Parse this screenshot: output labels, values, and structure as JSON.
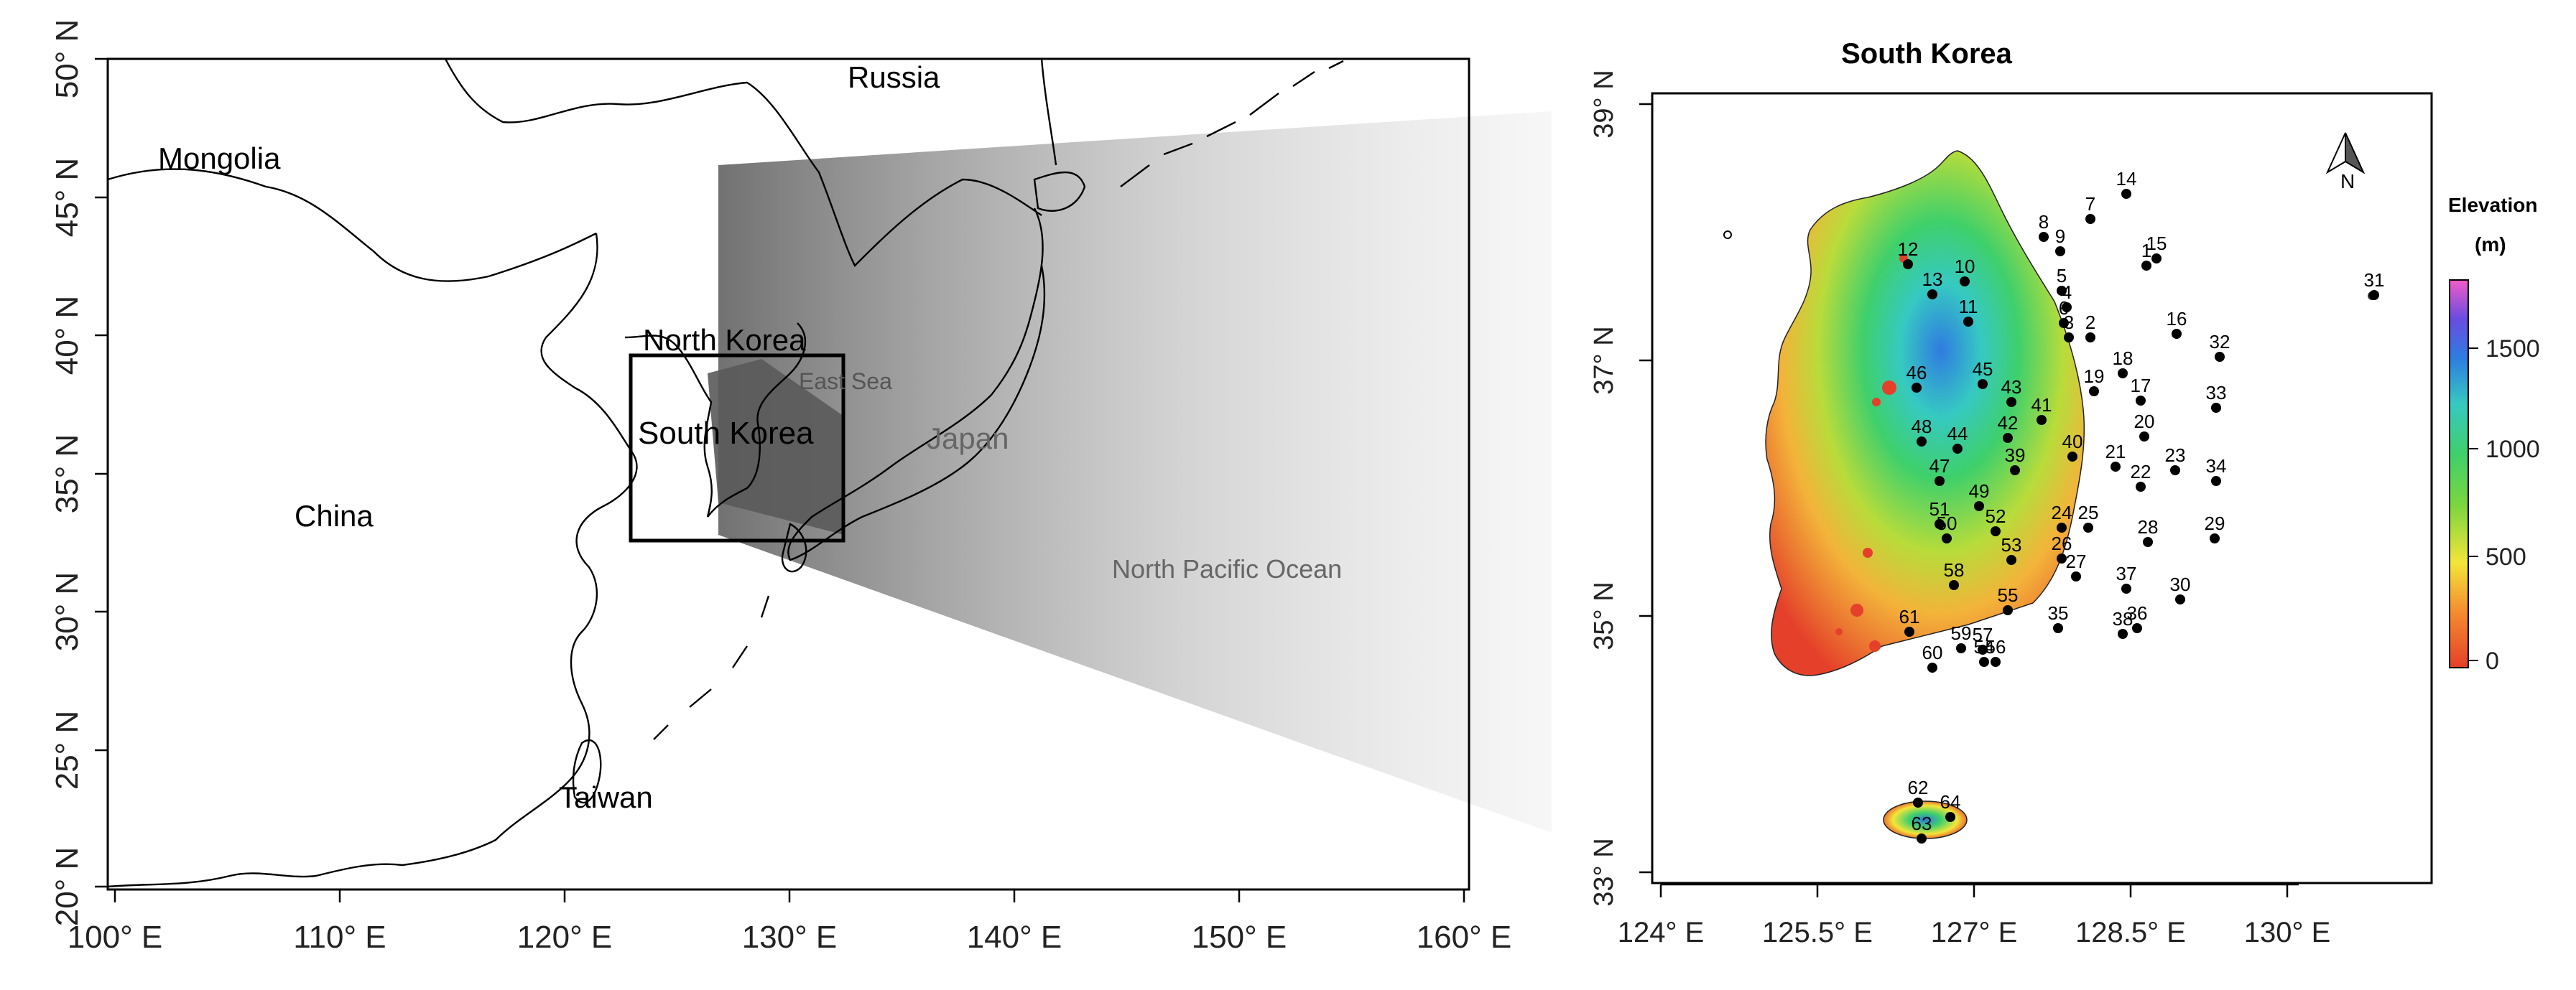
{
  "left_map": {
    "x_ticks": [
      "100° E",
      "110° E",
      "120° E",
      "130° E",
      "140° E",
      "150° E",
      "160° E"
    ],
    "y_ticks": [
      "20° N",
      "25° N",
      "30° N",
      "35° N",
      "40° N",
      "45° N",
      "50° N"
    ],
    "labels": {
      "russia": "Russia",
      "mongolia": "Mongolia",
      "china": "China",
      "north_korea": "North Korea",
      "south_korea": "South Korea",
      "east_sea": "East Sea",
      "japan": "Japan",
      "taiwan": "Taiwan",
      "pacific": "North Pacific Ocean"
    }
  },
  "right_map": {
    "title": "South Korea",
    "north_label": "N",
    "x_ticks": [
      "124° E",
      "125.5° E",
      "127° E",
      "128.5° E",
      "130° E"
    ],
    "y_ticks": [
      "39° N",
      "37° N",
      "35° N",
      "33° N"
    ],
    "legend": {
      "title_line1": "Elevation",
      "title_line2": "(m)",
      "ticks": [
        "1500",
        "1000",
        "500",
        "0"
      ]
    },
    "stations": [
      "1",
      "2",
      "3",
      "4",
      "5",
      "6",
      "7",
      "8",
      "9",
      "10",
      "11",
      "12",
      "13",
      "14",
      "15",
      "16",
      "17",
      "18",
      "19",
      "20",
      "21",
      "22",
      "23",
      "24",
      "25",
      "26",
      "27",
      "28",
      "29",
      "30",
      "31",
      "32",
      "33",
      "34",
      "35",
      "36",
      "37",
      "38",
      "39",
      "40",
      "41",
      "42",
      "43",
      "44",
      "45",
      "46",
      "47",
      "48",
      "49",
      "50",
      "51",
      "52",
      "53",
      "54",
      "55",
      "56",
      "57",
      "58",
      "59",
      "60",
      "61",
      "62",
      "63",
      "64"
    ]
  },
  "colors": {
    "zoom_box": "#000000",
    "elev_low": "#e5402a",
    "elev_mid": "#f3e53a",
    "elev_high": "#3fd06b",
    "elev_peak": "#2f7be0"
  }
}
